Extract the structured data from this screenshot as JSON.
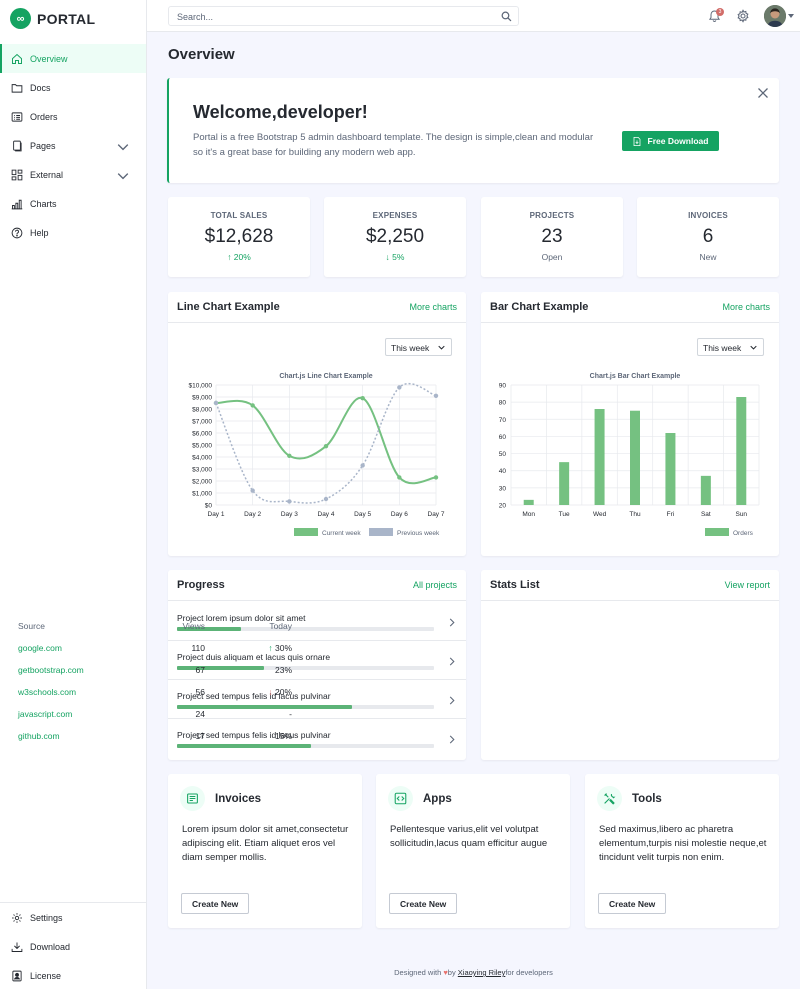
{
  "app": {
    "logo_text": "PORTAL",
    "logo_glyph": "∞"
  },
  "sidebar": {
    "items": [
      {
        "label": "Overview",
        "icon": "house-icon",
        "active": true
      },
      {
        "label": "Docs",
        "icon": "folder-icon"
      },
      {
        "label": "Orders",
        "icon": "card-list-icon"
      },
      {
        "label": "Pages",
        "icon": "files-icon",
        "expandable": true
      },
      {
        "label": "External",
        "icon": "columns-gap-icon",
        "expandable": true
      },
      {
        "label": "Charts",
        "icon": "bar-chart-icon"
      },
      {
        "label": "Help",
        "icon": "question-circle-icon"
      }
    ],
    "footer_items": [
      {
        "label": "Settings",
        "icon": "gear-icon"
      },
      {
        "label": "Download",
        "icon": "download-icon"
      },
      {
        "label": "License",
        "icon": "file-person-icon"
      }
    ]
  },
  "header": {
    "search_placeholder": "Search...",
    "notification_count": "3"
  },
  "page": {
    "title": "Overview"
  },
  "welcome": {
    "title": "Welcome,developer!",
    "text": "Portal is a free Bootstrap 5 admin dashboard template. The design is simple,clean and modular so it's a great base for building any modern web app.",
    "button_label": "Free Download"
  },
  "stats": [
    {
      "label": "TOTAL SALES",
      "value": "$12,628",
      "sub": "↑ 20%",
      "sub_color": "#15a362"
    },
    {
      "label": "EXPENSES",
      "value": "$2,250",
      "sub": "↓ 5%",
      "sub_color": "#15a362"
    },
    {
      "label": "PROJECTS",
      "value": "23",
      "sub": "Open"
    },
    {
      "label": "INVOICES",
      "value": "6",
      "sub": "New"
    }
  ],
  "line_card": {
    "title": "Line Chart Example",
    "link": "More charts",
    "select_value": "This week"
  },
  "bar_card": {
    "title": "Bar Chart Example",
    "link": "More charts",
    "select_value": "This week"
  },
  "chart_data": [
    {
      "type": "line",
      "title": "Chart.js Line Chart Example",
      "categories": [
        "Day 1",
        "Day 2",
        "Day 3",
        "Day 4",
        "Day 5",
        "Day 6",
        "Day 7"
      ],
      "y_ticks": [
        "$0",
        "$1,000",
        "$2,000",
        "$3,000",
        "$4,000",
        "$5,000",
        "$6,000",
        "$7,000",
        "$8,000",
        "$9,000",
        "$10,000"
      ],
      "ylim": [
        0,
        10000
      ],
      "series": [
        {
          "name": "Current week",
          "values": [
            8500,
            8300,
            4100,
            4900,
            8900,
            2300,
            2300
          ],
          "color": "#75c181",
          "style": "solid"
        },
        {
          "name": "Previous week",
          "values": [
            8500,
            1200,
            300,
            500,
            3300,
            9800,
            9100
          ],
          "color": "#a9b5c9",
          "style": "dashed"
        }
      ],
      "legend": "bottom-right",
      "grid": true
    },
    {
      "type": "bar",
      "title": "Chart.js Bar Chart Example",
      "categories": [
        "Mon",
        "Tue",
        "Wed",
        "Thu",
        "Fri",
        "Sat",
        "Sun"
      ],
      "y_ticks": [
        "20",
        "30",
        "40",
        "50",
        "60",
        "70",
        "80",
        "90"
      ],
      "ylim": [
        20,
        90
      ],
      "series": [
        {
          "name": "Orders",
          "values": [
            23,
            45,
            76,
            75,
            62,
            37,
            83
          ],
          "color": "#75c181"
        }
      ],
      "legend": "bottom-right",
      "grid": true
    }
  ],
  "progress": {
    "title": "Progress",
    "link": "All projects",
    "items": [
      {
        "label": "Project lorem ipsum dolor sit amet",
        "percent": 25
      },
      {
        "label": "Project duis aliquam et lacus quis ornare",
        "percent": 34
      },
      {
        "label": "Project sed tempus felis id lacus pulvinar",
        "percent": 68
      },
      {
        "label": "Project sed tempus felis id lacus pulvinar",
        "percent": 52
      }
    ]
  },
  "stats_list": {
    "title": "Stats List",
    "link": "View report",
    "headers": [
      "Source",
      "Views",
      "Today"
    ],
    "rows": [
      {
        "source": "google.com",
        "views": "110",
        "today": "30%",
        "trend": "up"
      },
      {
        "source": "getbootstrap.com",
        "views": "67",
        "today": "23%",
        "trend": ""
      },
      {
        "source": "w3schools.com",
        "views": "56",
        "today": "20%",
        "trend": "down"
      },
      {
        "source": "javascript.com",
        "views": "24",
        "today": "-",
        "trend": ""
      },
      {
        "source": "github.com",
        "views": "17",
        "today": "15%",
        "trend": ""
      }
    ]
  },
  "features": [
    {
      "title": "Invoices",
      "icon": "receipt-icon",
      "text": "Lorem ipsum dolor sit amet,consectetur adipiscing elit. Etiam aliquet eros vel diam semper mollis.",
      "button": "Create New"
    },
    {
      "title": "Apps",
      "icon": "code-square-icon",
      "text": "Pellentesque varius,elit vel volutpat sollicitudin,lacus quam efficitur augue",
      "button": "Create New"
    },
    {
      "title": "Tools",
      "icon": "tools-icon",
      "text": "Sed maximus,libero ac pharetra elementum,turpis nisi molestie neque,et tincidunt velit turpis non enim.",
      "button": "Create New"
    }
  ],
  "footer": {
    "prefix": "Designed with ",
    "heart": "♥",
    "by": "by ",
    "author": "Xiaoying Riley",
    "suffix": "for developers"
  }
}
